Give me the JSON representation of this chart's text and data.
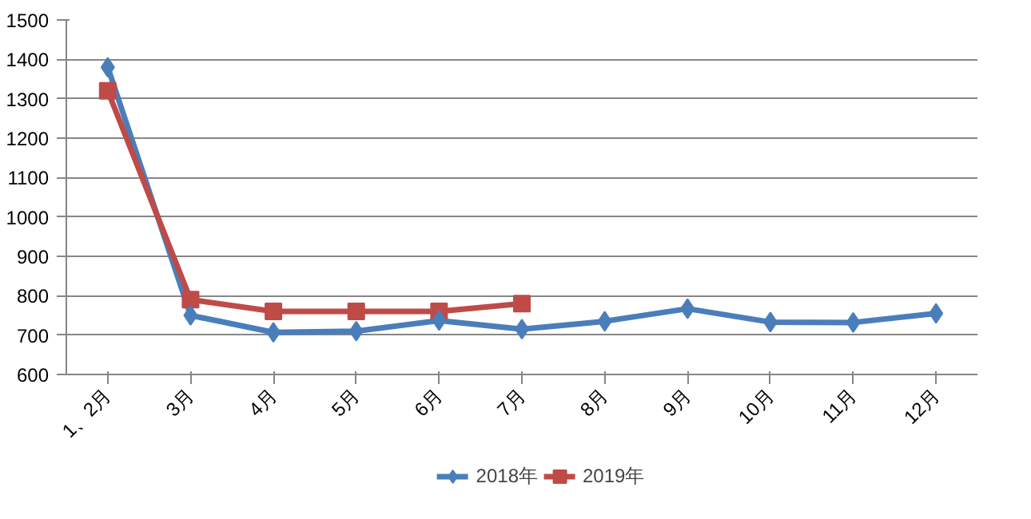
{
  "chart_data": {
    "type": "line",
    "categories": [
      "1、2月",
      "3月",
      "4月",
      "5月",
      "6月",
      "7月",
      "8月",
      "9月",
      "10月",
      "11月",
      "12月"
    ],
    "series": [
      {
        "name": "2018年",
        "color": "#4a7ebb",
        "marker": "diamond",
        "values": [
          1380,
          750,
          707,
          710,
          737,
          715,
          735,
          767,
          733,
          732,
          755
        ]
      },
      {
        "name": "2019年",
        "color": "#be4b48",
        "marker": "square",
        "values": [
          1320,
          790,
          760,
          760,
          760,
          780,
          null,
          null,
          null,
          null,
          null
        ]
      }
    ],
    "ylim": [
      600,
      1500
    ],
    "yticks": [
      600,
      700,
      800,
      900,
      1000,
      1100,
      1200,
      1300,
      1400,
      1500
    ],
    "grid": "y",
    "legend": "bottom"
  }
}
